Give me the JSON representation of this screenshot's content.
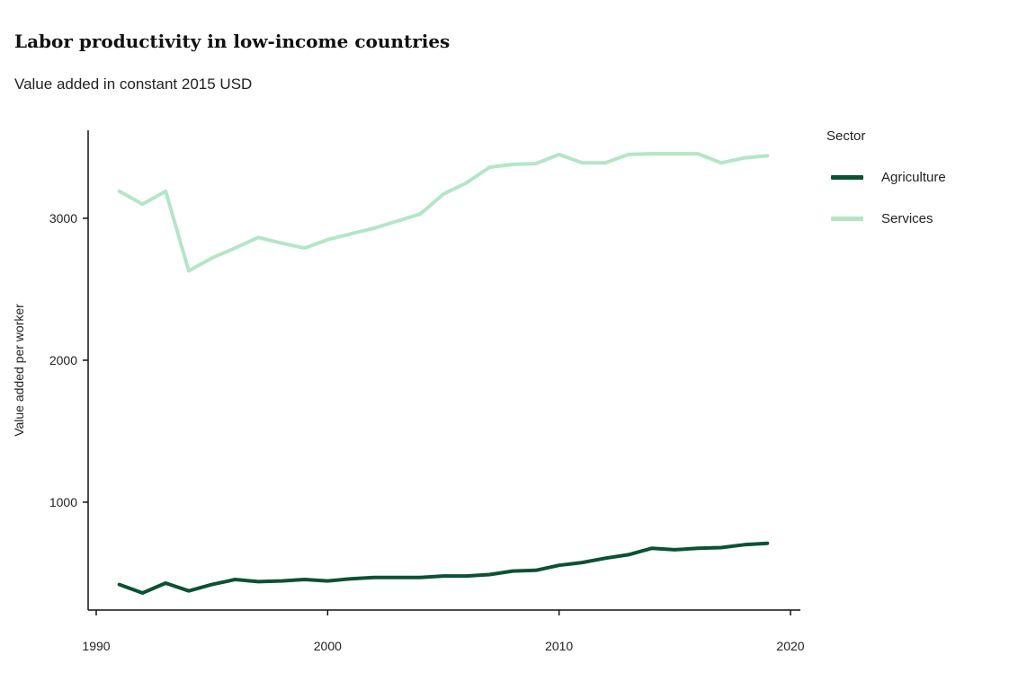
{
  "chart_data": {
    "type": "line",
    "title": "Labor productivity in low-income countries",
    "subtitle": "Value added in constant 2015 USD",
    "ylabel": "Value added per worker",
    "xlabel": "",
    "xlim": [
      1990,
      2020
    ],
    "ylim": [
      240,
      3620
    ],
    "xticks": [
      1990,
      2000,
      2010,
      2020
    ],
    "yticks": [
      1000,
      2000,
      3000
    ],
    "legend": {
      "title": "Sector",
      "placement": "right"
    },
    "x": [
      1991,
      1992,
      1993,
      1994,
      1995,
      1996,
      1997,
      1998,
      1999,
      2000,
      2001,
      2002,
      2003,
      2004,
      2005,
      2006,
      2007,
      2008,
      2009,
      2010,
      2011,
      2012,
      2013,
      2014,
      2015,
      2016,
      2017,
      2018,
      2019
    ],
    "series": [
      {
        "name": "Agriculture",
        "color": "#0b5234",
        "values": [
          420,
          360,
          430,
          375,
          420,
          455,
          440,
          445,
          455,
          445,
          460,
          470,
          470,
          470,
          480,
          480,
          490,
          515,
          520,
          555,
          575,
          605,
          630,
          675,
          665,
          675,
          680,
          700,
          710
        ]
      },
      {
        "name": "Services",
        "color": "#b3e6c7",
        "values": [
          3190,
          3100,
          3190,
          2630,
          2720,
          2790,
          2865,
          2825,
          2790,
          2850,
          2890,
          2930,
          2980,
          3030,
          3170,
          3250,
          3360,
          3380,
          3385,
          3450,
          3390,
          3390,
          3450,
          3455,
          3455,
          3455,
          3390,
          3425,
          3440
        ]
      }
    ]
  }
}
